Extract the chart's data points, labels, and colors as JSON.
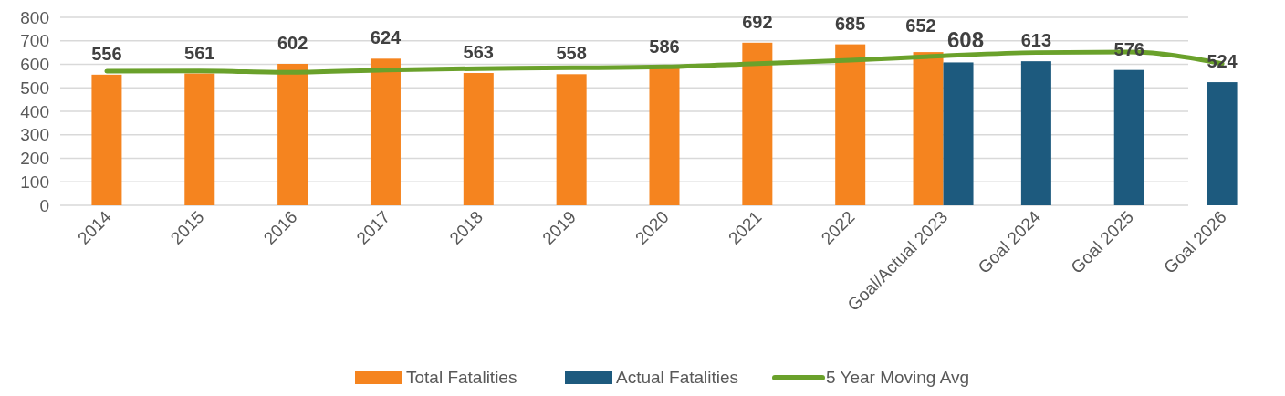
{
  "chart_data": {
    "type": "bar",
    "categories": [
      "2014",
      "2015",
      "2016",
      "2017",
      "2018",
      "2019",
      "2020",
      "2021",
      "2022",
      "Goal/Actual 2023",
      "Goal 2024",
      "Goal 2025",
      "Goal 2026"
    ],
    "series": [
      {
        "name": "Total Fatalities",
        "color": "#f5841f",
        "values": [
          556,
          561,
          602,
          624,
          563,
          558,
          586,
          692,
          685,
          652,
          null,
          null,
          null
        ],
        "value_labels": [
          "556",
          "561",
          "602",
          "624",
          "563",
          "558",
          "586",
          "692",
          "685",
          "652",
          null,
          null,
          null
        ]
      },
      {
        "name": "Actual Fatalities",
        "color": "#1d5a7e",
        "values": [
          null,
          null,
          null,
          null,
          null,
          null,
          null,
          null,
          null,
          608,
          613,
          576,
          524
        ],
        "value_labels": [
          null,
          null,
          null,
          null,
          null,
          null,
          null,
          null,
          null,
          "608",
          "613",
          "576",
          "524"
        ]
      },
      {
        "name": "5 Year Moving Avg",
        "type": "line",
        "color": "#6aa12b",
        "values": [
          571,
          572,
          566,
          576,
          582,
          585,
          589,
          603,
          617,
          636,
          650,
          652,
          603
        ]
      }
    ],
    "ylim": [
      0,
      800
    ],
    "yticks": [
      0,
      100,
      200,
      300,
      400,
      500,
      600,
      700,
      800
    ],
    "grid": "y",
    "legend": "bottom"
  }
}
